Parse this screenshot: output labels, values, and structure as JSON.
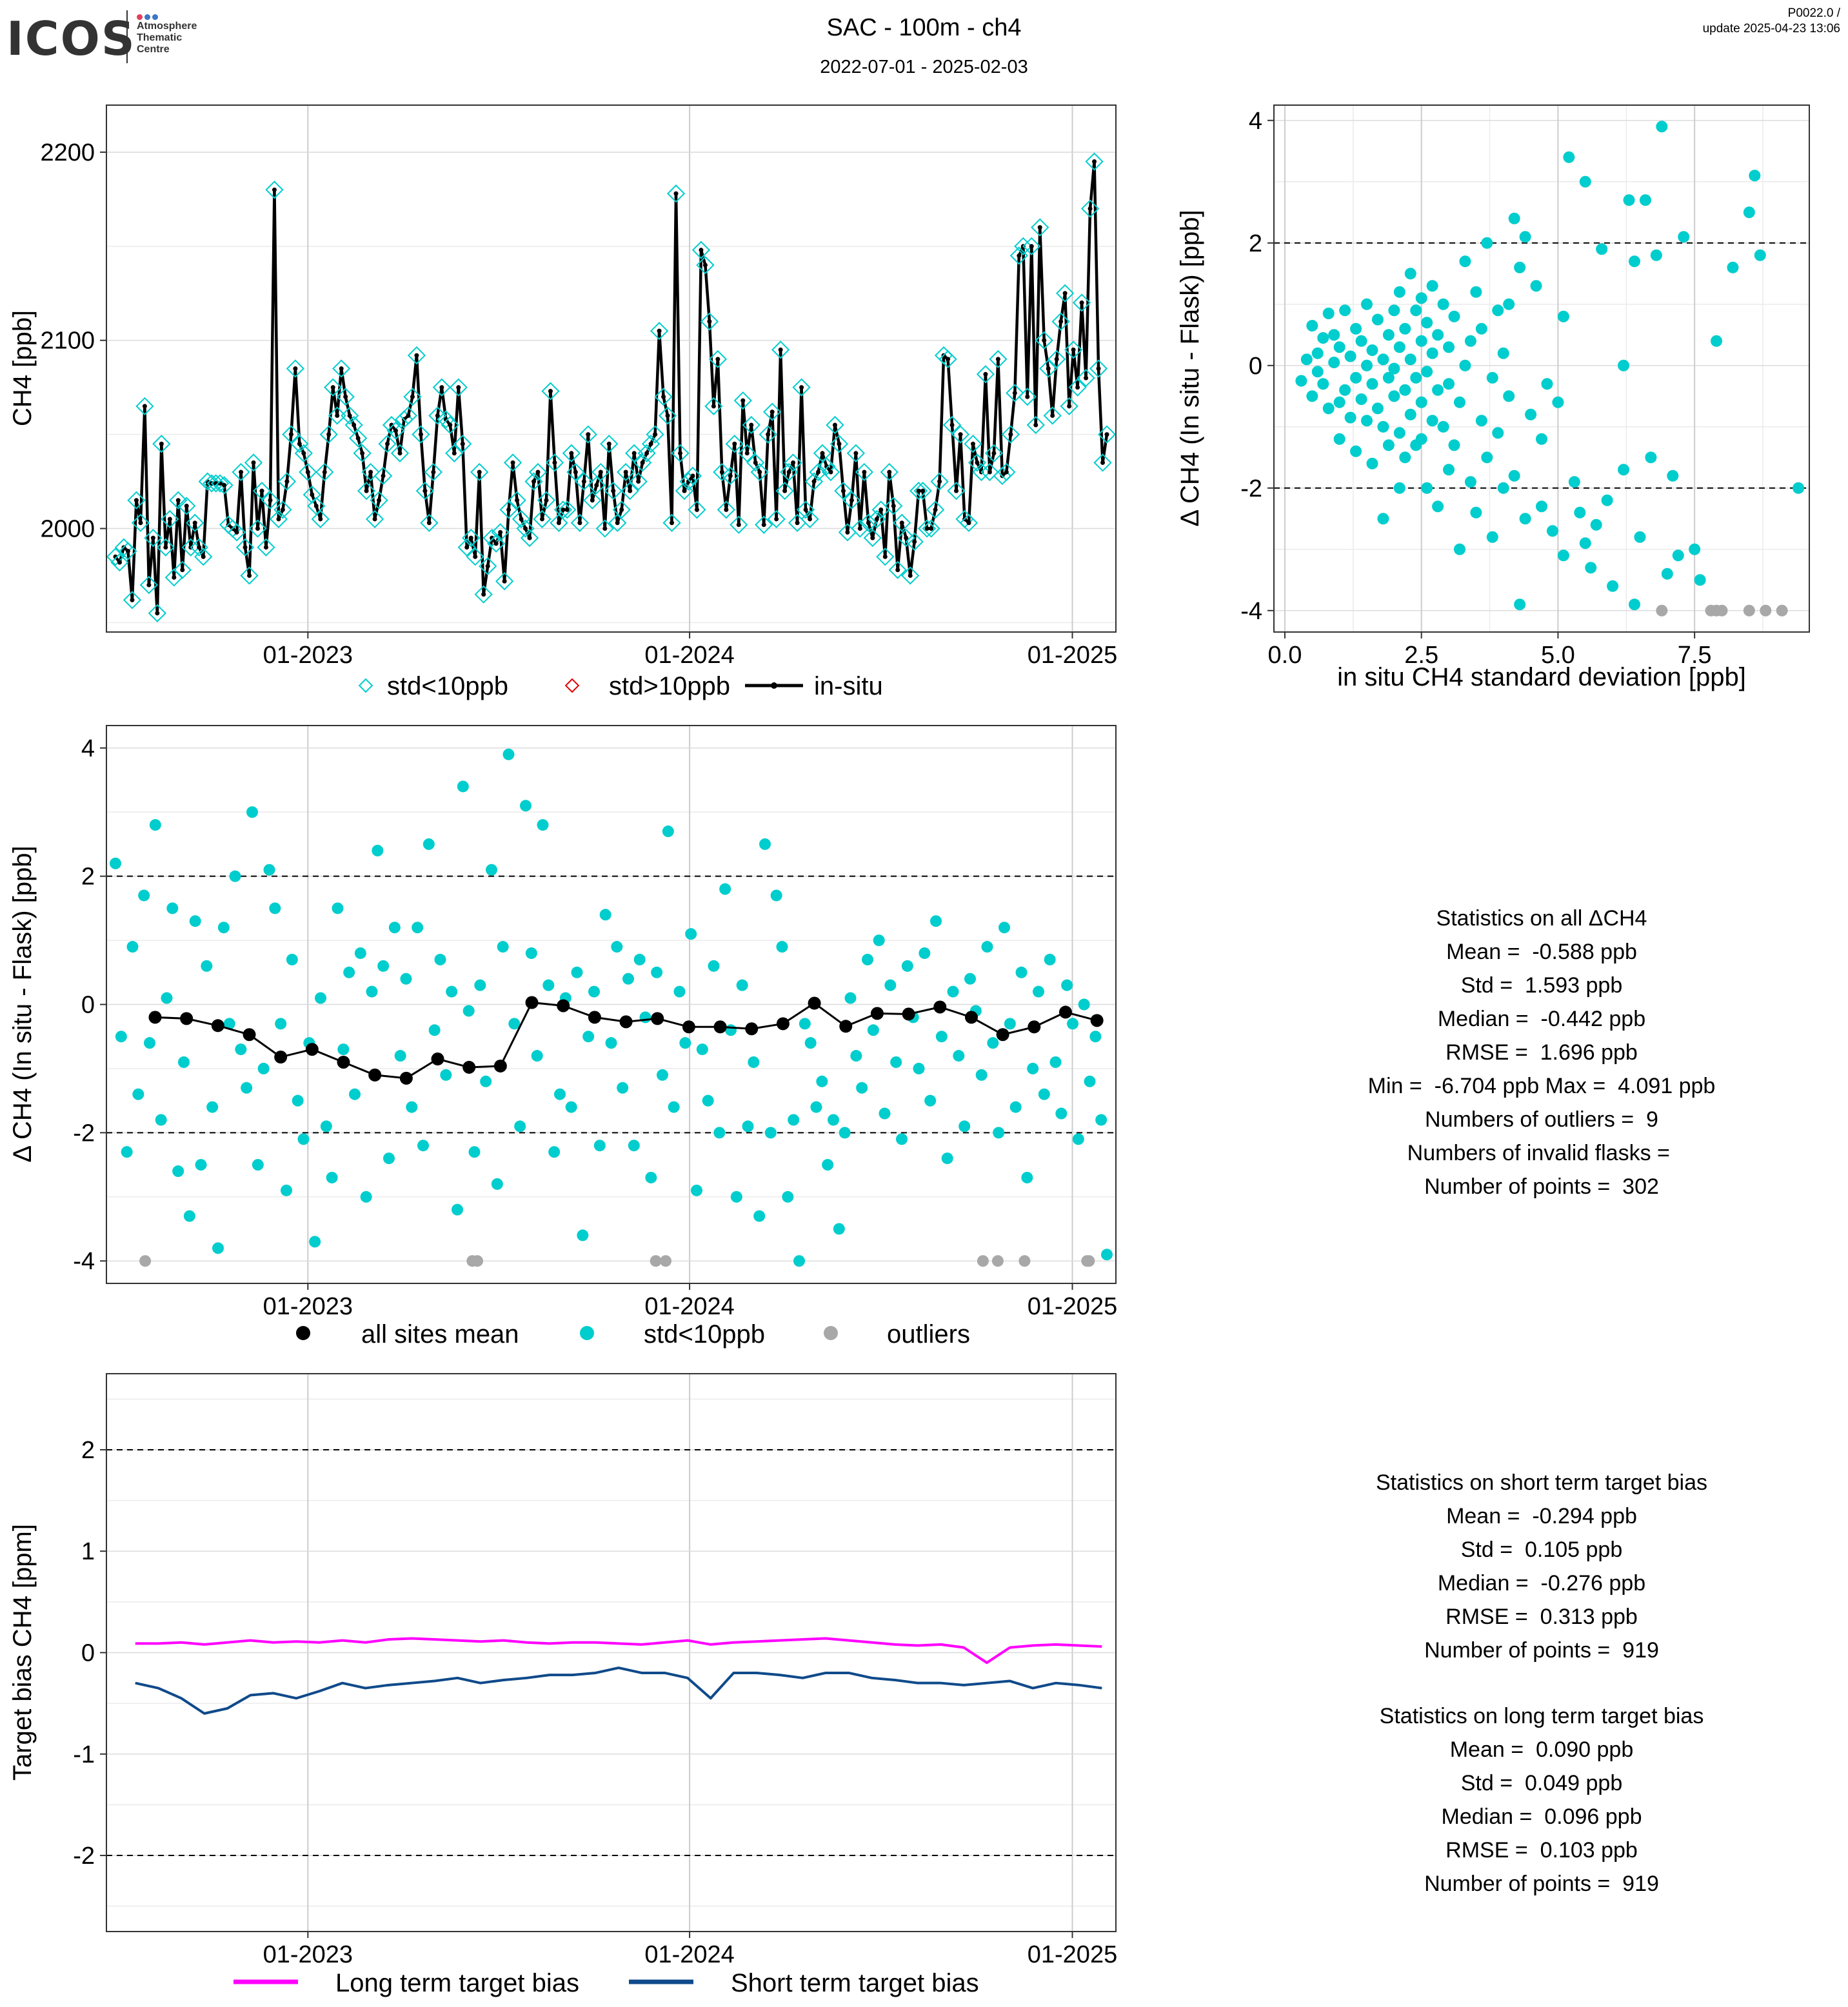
{
  "header": {
    "logo": {
      "name": "ICOS",
      "subtitle": [
        "Atmosphere",
        "Thematic",
        "Centre"
      ],
      "dot_colors": [
        "#e2405a",
        "#3e75c6",
        "#3e75c6"
      ]
    },
    "title": "SAC - 100m - ch4",
    "date_range": "2022-07-01 - 2025-02-03",
    "version": "P0022.0 /",
    "update": "update  2025-04-23 13:06"
  },
  "colors": {
    "std_lt10": "#00cdcd",
    "std_gt10": "#e00000",
    "insitu": "#000000",
    "outliers": "#a8a8a8",
    "long_term": "#ff00ff",
    "short_term": "#0f4a8a"
  },
  "chart_data": [
    {
      "id": "timeseries",
      "type": "line",
      "ylabel": "CH4 [ppb]",
      "x_ticks": [
        "01-2023",
        "01-2024",
        "01-2025"
      ],
      "y_ticks": [
        2000,
        2100,
        2200
      ],
      "ylim": [
        1945,
        2225
      ],
      "legend": [
        "std<10ppb",
        "std>10ppb",
        "in-situ"
      ],
      "legend_position": "bottom",
      "insitu_y": [
        1985,
        1982,
        1990,
        1988,
        1962,
        2015,
        2003,
        2065,
        1970,
        1995,
        1955,
        2045,
        1990,
        2005,
        1974,
        2015,
        1978,
        2012,
        1990,
        2003,
        1990,
        1985,
        2025,
        2024,
        2024,
        2024,
        2023,
        2002,
        2000,
        1998,
        2030,
        1990,
        1975,
        2035,
        2000,
        2020,
        1990,
        2015,
        2180,
        2005,
        2010,
        2025,
        2050,
        2085,
        2045,
        2040,
        2030,
        2018,
        2012,
        2005,
        2030,
        2050,
        2075,
        2060,
        2085,
        2070,
        2060,
        2055,
        2048,
        2040,
        2020,
        2030,
        2005,
        2015,
        2028,
        2045,
        2055,
        2052,
        2040,
        2058,
        2060,
        2070,
        2092,
        2050,
        2020,
        2003,
        2030,
        2060,
        2075,
        2058,
        2055,
        2040,
        2075,
        2045,
        1990,
        1995,
        1985,
        2030,
        1965,
        1980,
        1995,
        1992,
        1998,
        1972,
        2010,
        2035,
        2015,
        2005,
        2000,
        1995,
        2025,
        2030,
        2005,
        2015,
        2073,
        2035,
        2003,
        2010,
        2010,
        2040,
        2030,
        2003,
        2025,
        2050,
        2015,
        2023,
        2030,
        2000,
        2045,
        2020,
        2003,
        2010,
        2030,
        2020,
        2040,
        2025,
        2035,
        2040,
        2045,
        2050,
        2105,
        2070,
        2060,
        2003,
        2178,
        2040,
        2020,
        2025,
        2028,
        2010,
        2148,
        2140,
        2110,
        2065,
        2090,
        2030,
        2010,
        2028,
        2045,
        2002,
        2068,
        2040,
        2055,
        2035,
        2030,
        2002,
        2050,
        2062,
        2005,
        2095,
        2020,
        2030,
        2035,
        2003,
        2075,
        2010,
        2005,
        2025,
        2030,
        2040,
        2033,
        2030,
        2055,
        2045,
        2020,
        1998,
        2015,
        2040,
        2000,
        2030,
        2003,
        1995,
        2005,
        2010,
        1985,
        2030,
        2012,
        1978,
        2003,
        1995,
        1975,
        1993,
        2020,
        2020,
        2000,
        2000,
        2010,
        2025,
        2092,
        2090,
        2055,
        2020,
        2050,
        2005,
        2003,
        2045,
        2035,
        2030,
        2082,
        2030,
        2040,
        2090,
        2028,
        2030,
        2050,
        2072,
        2145,
        2150,
        2070,
        2150,
        2055,
        2160,
        2100,
        2085,
        2060,
        2090,
        2110,
        2125,
        2065,
        2095,
        2075,
        2120,
        2080,
        2170,
        2195,
        2085,
        2035,
        2050
      ],
      "notes": "x positions are equally spaced in time over 2022-07-01..2025-02-03; all flask samples have std<10ppb"
    },
    {
      "id": "delta_vs_std",
      "type": "scatter",
      "xlabel": "in situ CH4 standard deviation [ppb]",
      "ylabel": "Δ CH4 (In situ - Flask) [ppb]",
      "x_ticks": [
        0.0,
        2.5,
        5.0,
        7.5
      ],
      "x_tick_labels": [
        "0.0",
        "2.5",
        "5.0",
        "7.5"
      ],
      "y_ticks": [
        -4,
        -2,
        0,
        2,
        4
      ],
      "xlim": [
        -0.2,
        9.6
      ],
      "ylim": [
        -4.35,
        4.25
      ],
      "hlines": [
        2,
        -2
      ],
      "points": [
        [
          0.3,
          -0.25
        ],
        [
          0.4,
          0.1
        ],
        [
          0.5,
          -0.5
        ],
        [
          0.5,
          0.65
        ],
        [
          0.6,
          0.2
        ],
        [
          0.6,
          -0.1
        ],
        [
          0.7,
          0.45
        ],
        [
          0.7,
          -0.3
        ],
        [
          0.8,
          0.85
        ],
        [
          0.8,
          -0.7
        ],
        [
          0.9,
          0.05
        ],
        [
          0.9,
          0.5
        ],
        [
          1.0,
          -0.6
        ],
        [
          1.0,
          0.3
        ],
        [
          1.0,
          -1.2
        ],
        [
          1.1,
          0.9
        ],
        [
          1.1,
          -0.4
        ],
        [
          1.2,
          0.15
        ],
        [
          1.2,
          -0.85
        ],
        [
          1.3,
          0.6
        ],
        [
          1.3,
          -0.2
        ],
        [
          1.3,
          -1.4
        ],
        [
          1.4,
          0.4
        ],
        [
          1.4,
          -0.55
        ],
        [
          1.5,
          1.0
        ],
        [
          1.5,
          0.0
        ],
        [
          1.5,
          -0.9
        ],
        [
          1.6,
          0.25
        ],
        [
          1.6,
          -0.3
        ],
        [
          1.6,
          -1.6
        ],
        [
          1.7,
          0.75
        ],
        [
          1.7,
          -0.7
        ],
        [
          1.8,
          0.1
        ],
        [
          1.8,
          -1.0
        ],
        [
          1.8,
          -2.5
        ],
        [
          1.9,
          0.5
        ],
        [
          1.9,
          -0.2
        ],
        [
          1.9,
          -1.3
        ],
        [
          2.0,
          0.9
        ],
        [
          2.0,
          -0.5
        ],
        [
          2.0,
          -0.05
        ],
        [
          2.1,
          1.2
        ],
        [
          2.1,
          0.3
        ],
        [
          2.1,
          -1.1
        ],
        [
          2.1,
          -2.0
        ],
        [
          2.2,
          0.6
        ],
        [
          2.2,
          -0.4
        ],
        [
          2.2,
          -1.5
        ],
        [
          2.3,
          1.5
        ],
        [
          2.3,
          0.1
        ],
        [
          2.3,
          -0.8
        ],
        [
          2.4,
          0.9
        ],
        [
          2.4,
          -0.2
        ],
        [
          2.4,
          -1.3
        ],
        [
          2.5,
          1.1
        ],
        [
          2.5,
          0.4
        ],
        [
          2.5,
          -0.6
        ],
        [
          2.5,
          -1.2
        ],
        [
          2.6,
          0.7
        ],
        [
          2.6,
          -0.1
        ],
        [
          2.6,
          -2.0
        ],
        [
          2.7,
          1.3
        ],
        [
          2.7,
          0.2
        ],
        [
          2.7,
          -0.9
        ],
        [
          2.8,
          0.5
        ],
        [
          2.8,
          -0.4
        ],
        [
          2.8,
          -2.3
        ],
        [
          2.9,
          1.0
        ],
        [
          2.9,
          -1.0
        ],
        [
          3.0,
          0.3
        ],
        [
          3.0,
          -0.3
        ],
        [
          3.0,
          -1.7
        ],
        [
          3.1,
          0.8
        ],
        [
          3.1,
          -1.3
        ],
        [
          3.2,
          -0.6
        ],
        [
          3.2,
          -3.0
        ],
        [
          3.3,
          1.7
        ],
        [
          3.3,
          0.0
        ],
        [
          3.4,
          -1.9
        ],
        [
          3.4,
          0.4
        ],
        [
          3.5,
          1.2
        ],
        [
          3.5,
          -2.4
        ],
        [
          3.6,
          -0.9
        ],
        [
          3.6,
          0.6
        ],
        [
          3.7,
          2.0
        ],
        [
          3.7,
          -1.5
        ],
        [
          3.8,
          -0.2
        ],
        [
          3.8,
          -2.8
        ],
        [
          3.9,
          0.9
        ],
        [
          3.9,
          -1.1
        ],
        [
          4.0,
          0.2
        ],
        [
          4.0,
          -2.0
        ],
        [
          4.1,
          1.0
        ],
        [
          4.1,
          -0.5
        ],
        [
          4.2,
          2.4
        ],
        [
          4.2,
          -1.8
        ],
        [
          4.3,
          -3.9
        ],
        [
          4.3,
          1.6
        ],
        [
          4.4,
          2.1
        ],
        [
          4.4,
          -2.5
        ],
        [
          4.5,
          -0.8
        ],
        [
          4.6,
          1.3
        ],
        [
          4.7,
          -1.2
        ],
        [
          4.7,
          -2.3
        ],
        [
          4.8,
          -0.3
        ],
        [
          4.9,
          -2.7
        ],
        [
          5.0,
          -0.6
        ],
        [
          5.1,
          0.8
        ],
        [
          5.1,
          -3.1
        ],
        [
          5.2,
          3.4
        ],
        [
          5.3,
          -1.9
        ],
        [
          5.4,
          -2.4
        ],
        [
          5.5,
          -2.9
        ],
        [
          5.5,
          3.0
        ],
        [
          5.6,
          -3.3
        ],
        [
          5.7,
          -2.6
        ],
        [
          5.8,
          1.9
        ],
        [
          5.9,
          -2.2
        ],
        [
          6.0,
          -3.6
        ],
        [
          6.2,
          0.0
        ],
        [
          6.2,
          -1.7
        ],
        [
          6.3,
          2.7
        ],
        [
          6.4,
          1.7
        ],
        [
          6.4,
          -3.9
        ],
        [
          6.5,
          -2.8
        ],
        [
          6.6,
          2.7
        ],
        [
          6.7,
          -1.5
        ],
        [
          6.8,
          1.8
        ],
        [
          6.9,
          3.9
        ],
        [
          7.0,
          -3.4
        ],
        [
          7.1,
          -1.8
        ],
        [
          7.2,
          -3.1
        ],
        [
          7.3,
          2.1
        ],
        [
          7.5,
          -3.0
        ],
        [
          7.6,
          -3.5
        ],
        [
          7.9,
          0.4
        ],
        [
          8.2,
          1.6
        ],
        [
          8.5,
          2.5
        ],
        [
          8.6,
          3.1
        ],
        [
          8.7,
          1.8
        ],
        [
          9.4,
          -2.0
        ]
      ],
      "outlier_points": [
        [
          6.9,
          -4.0
        ],
        [
          7.8,
          -4.0
        ],
        [
          7.9,
          -4.0
        ],
        [
          8.0,
          -4.0
        ],
        [
          8.5,
          -4.0
        ],
        [
          8.8,
          -4.0
        ],
        [
          9.1,
          -4.0
        ]
      ]
    },
    {
      "id": "delta_timeseries",
      "type": "scatter",
      "ylabel": "Δ CH4 (In situ - Flask) [ppb]",
      "x_ticks": [
        "01-2023",
        "01-2024",
        "01-2025"
      ],
      "y_ticks": [
        -4,
        -2,
        0,
        2,
        4
      ],
      "ylim": [
        -4.35,
        4.35
      ],
      "hlines": [
        2,
        -2
      ],
      "legend": [
        "all sites mean",
        "std<10ppb",
        "outliers"
      ],
      "legend_position": "bottom",
      "mean_values": [
        -0.2,
        -0.22,
        -0.33,
        -0.47,
        -0.82,
        -0.7,
        -0.9,
        -1.1,
        -1.15,
        -0.85,
        -0.98,
        -0.96,
        0.03,
        -0.02,
        -0.2,
        -0.27,
        -0.22,
        -0.35,
        -0.35,
        -0.38,
        -0.3,
        0.02,
        -0.34,
        -0.14,
        -0.15,
        -0.04,
        -0.2,
        -0.47,
        -0.35,
        -0.12,
        -0.25
      ],
      "points_y": [
        2.2,
        -0.5,
        -2.3,
        0.9,
        -1.4,
        1.7,
        -0.6,
        2.8,
        -1.8,
        0.1,
        1.5,
        -2.6,
        -0.9,
        -3.3,
        1.3,
        -2.5,
        0.6,
        -1.6,
        -3.8,
        1.2,
        -0.3,
        2.0,
        -0.7,
        -1.3,
        3.0,
        -2.5,
        -1.0,
        2.1,
        1.5,
        -0.3,
        -2.9,
        0.7,
        -1.5,
        -2.1,
        -0.6,
        -3.7,
        0.1,
        -1.9,
        -2.7,
        1.5,
        -0.7,
        0.5,
        -1.4,
        0.8,
        -3.0,
        0.2,
        2.4,
        0.6,
        -2.4,
        1.2,
        -0.8,
        0.4,
        -1.6,
        1.2,
        -2.2,
        2.5,
        -0.4,
        0.7,
        -1.1,
        0.2,
        -3.2,
        3.4,
        -0.1,
        -2.3,
        0.3,
        -1.2,
        2.1,
        -2.8,
        0.9,
        3.9,
        -0.3,
        -1.9,
        3.1,
        0.8,
        -0.8,
        2.8,
        0.3,
        -2.3,
        -1.4,
        0.1,
        -1.6,
        0.5,
        -3.6,
        -0.5,
        0.2,
        -2.2,
        1.4,
        -0.6,
        0.9,
        -1.3,
        0.4,
        -2.2,
        0.7,
        -0.2,
        -2.7,
        0.5,
        -1.1,
        2.7,
        -1.6,
        0.2,
        -0.6,
        1.1,
        -2.9,
        -0.7,
        -1.5,
        0.6,
        -2.0,
        1.8,
        -0.4,
        -3.0,
        0.3,
        -1.9,
        -0.9,
        -3.3,
        2.5,
        -2.0,
        1.7,
        0.9,
        -3.0,
        -1.8,
        -4.0,
        -0.3,
        -0.6,
        -1.6,
        -1.2,
        -2.5,
        -1.8,
        -3.5,
        -2.0,
        0.1,
        -0.8,
        -1.3,
        0.7,
        -0.4,
        1.0,
        -1.7,
        0.3,
        -0.9,
        -2.1,
        0.6,
        -0.2,
        -1.0,
        0.8,
        -1.5,
        1.3,
        -0.5,
        -2.4,
        0.2,
        -0.8,
        -1.9,
        0.4,
        -0.1,
        -1.1,
        0.9,
        -0.6,
        -2.0,
        1.2,
        -0.3,
        -1.6,
        0.5,
        -2.7,
        -1.0,
        0.2,
        -1.4,
        0.7,
        -0.9,
        -1.7,
        0.3,
        -0.3,
        -2.1,
        0.0,
        -1.2,
        -0.5,
        -1.8,
        -3.9
      ],
      "outlier_x_frac": [
        0.03,
        0.36,
        0.365,
        0.545,
        0.555,
        0.875,
        0.89,
        0.917,
        0.98,
        0.982
      ],
      "notes": "x positions are equally spaced in time; outlier points are at -4"
    },
    {
      "id": "target_bias",
      "type": "line",
      "ylabel": "Target bias CH4 [ppm]",
      "x_ticks": [
        "01-2023",
        "01-2024",
        "01-2025"
      ],
      "y_ticks": [
        -2,
        -1,
        0,
        1,
        2
      ],
      "ylim": [
        -2.75,
        2.75
      ],
      "hlines": [
        2,
        -2
      ],
      "legend": [
        "Long term target bias",
        "Short term target bias"
      ],
      "legend_position": "bottom",
      "long_term": [
        0.09,
        0.09,
        0.1,
        0.08,
        0.1,
        0.12,
        0.1,
        0.11,
        0.1,
        0.12,
        0.1,
        0.13,
        0.14,
        0.13,
        0.12,
        0.11,
        0.12,
        0.1,
        0.09,
        0.1,
        0.1,
        0.09,
        0.08,
        0.1,
        0.12,
        0.08,
        0.1,
        0.11,
        0.12,
        0.13,
        0.14,
        0.12,
        0.1,
        0.08,
        0.07,
        0.08,
        0.05,
        -0.1,
        0.05,
        0.07,
        0.08,
        0.07,
        0.06
      ],
      "short_term": [
        -0.3,
        -0.35,
        -0.45,
        -0.6,
        -0.55,
        -0.42,
        -0.4,
        -0.45,
        -0.38,
        -0.3,
        -0.35,
        -0.32,
        -0.3,
        -0.28,
        -0.25,
        -0.3,
        -0.27,
        -0.25,
        -0.22,
        -0.22,
        -0.2,
        -0.15,
        -0.2,
        -0.2,
        -0.25,
        -0.45,
        -0.2,
        -0.2,
        -0.22,
        -0.25,
        -0.2,
        -0.2,
        -0.25,
        -0.27,
        -0.3,
        -0.3,
        -0.32,
        -0.3,
        -0.28,
        -0.35,
        -0.3,
        -0.32,
        -0.35
      ]
    }
  ],
  "stats_delta": {
    "title": "Statistics on all ΔCH4",
    "lines": [
      "Mean =  -0.588 ppb",
      "Std =  1.593 ppb",
      "Median =  -0.442 ppb",
      "RMSE =  1.696 ppb",
      "Min =  -6.704 ppb Max =  4.091 ppb",
      "Numbers of outliers =  9",
      "Numbers of invalid flasks = ",
      "Number of points =  302"
    ]
  },
  "stats_short": {
    "title": "Statistics on short term target bias",
    "lines": [
      "Mean =  -0.294 ppb",
      "Std =  0.105 ppb",
      "Median =  -0.276 ppb",
      "RMSE =  0.313 ppb",
      "Number of points =  919"
    ]
  },
  "stats_long": {
    "title": "Statistics on long term target bias",
    "lines": [
      "Mean =  0.090 ppb",
      "Std =  0.049 ppb",
      "Median =  0.096 ppb",
      "RMSE =  0.103 ppb",
      "Number of points =  919"
    ]
  }
}
